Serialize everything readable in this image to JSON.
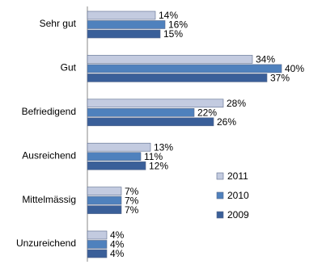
{
  "chart_data": {
    "type": "bar",
    "orientation": "horizontal",
    "categories": [
      "Sehr gut",
      "Gut",
      "Befriedigend",
      "Ausreichend",
      "Mittelmässig",
      "Unzureichend"
    ],
    "series": [
      {
        "name": "2011",
        "color": "#c3cbe0",
        "values": [
          14,
          34,
          28,
          13,
          7,
          4
        ],
        "value_labels": [
          "14%",
          "34%",
          "28%",
          "13%",
          "7%",
          "4%"
        ]
      },
      {
        "name": "2010",
        "color": "#4f81bd",
        "values": [
          16,
          40,
          22,
          11,
          7,
          4
        ],
        "value_labels": [
          "16%",
          "40%",
          "22%",
          "11%",
          "7%",
          "4%"
        ]
      },
      {
        "name": "2009",
        "color": "#3a5f99",
        "values": [
          15,
          37,
          26,
          12,
          7,
          4
        ],
        "value_labels": [
          "15%",
          "37%",
          "26%",
          "12%",
          "7%",
          "4%"
        ]
      }
    ],
    "legend": "lower-right"
  }
}
